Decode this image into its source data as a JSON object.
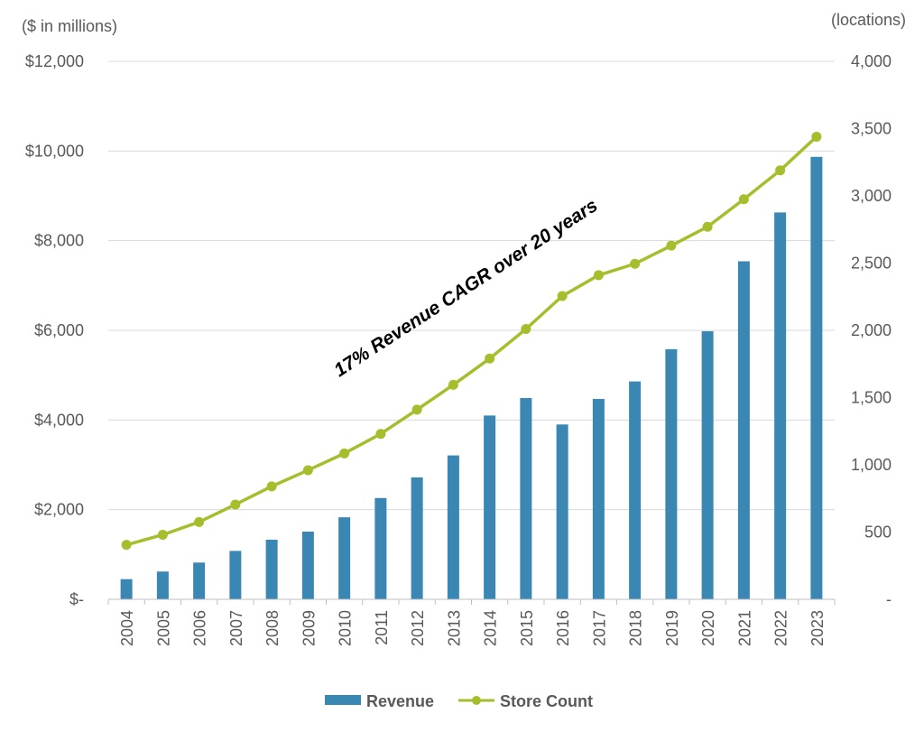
{
  "chart_data": {
    "type": "bar",
    "categories": [
      "2004",
      "2005",
      "2006",
      "2007",
      "2008",
      "2009",
      "2010",
      "2011",
      "2012",
      "2013",
      "2014",
      "2015",
      "2016",
      "2017",
      "2018",
      "2019",
      "2020",
      "2021",
      "2022",
      "2023"
    ],
    "series": [
      {
        "name": "Revenue",
        "type": "bar",
        "axis": "left",
        "color": "#3a87b4",
        "values": [
          450,
          620,
          820,
          1080,
          1330,
          1510,
          1830,
          2260,
          2720,
          3210,
          4100,
          4490,
          3900,
          4470,
          4860,
          5580,
          5980,
          7540,
          8630,
          9870
        ]
      },
      {
        "name": "Store Count",
        "type": "line",
        "axis": "right",
        "color": "#a6be2c",
        "values": [
          405,
          480,
          575,
          705,
          840,
          960,
          1085,
          1230,
          1410,
          1595,
          1790,
          2010,
          2255,
          2410,
          2495,
          2630,
          2770,
          2975,
          3190,
          3440
        ]
      }
    ],
    "left_axis": {
      "unit_label": "($ in millions)",
      "min": 0,
      "max": 12000,
      "ticks": [
        {
          "value": 0,
          "label": "$-"
        },
        {
          "value": 2000,
          "label": "$2,000"
        },
        {
          "value": 4000,
          "label": "$4,000"
        },
        {
          "value": 6000,
          "label": "$6,000"
        },
        {
          "value": 8000,
          "label": "$8,000"
        },
        {
          "value": 10000,
          "label": "$10,000"
        },
        {
          "value": 12000,
          "label": "$12,000"
        }
      ]
    },
    "right_axis": {
      "unit_label": "(locations)",
      "min": 0,
      "max": 4000,
      "ticks": [
        {
          "value": 0,
          "label": "-"
        },
        {
          "value": 500,
          "label": "500"
        },
        {
          "value": 1000,
          "label": "1,000"
        },
        {
          "value": 1500,
          "label": "1,500"
        },
        {
          "value": 2000,
          "label": "2,000"
        },
        {
          "value": 2500,
          "label": "2,500"
        },
        {
          "value": 3000,
          "label": "3,000"
        },
        {
          "value": 3500,
          "label": "3,500"
        },
        {
          "value": 4000,
          "label": "4,000"
        }
      ]
    },
    "annotation": "17% Revenue CAGR over 20 years",
    "grid": true,
    "legend_position": "bottom"
  }
}
